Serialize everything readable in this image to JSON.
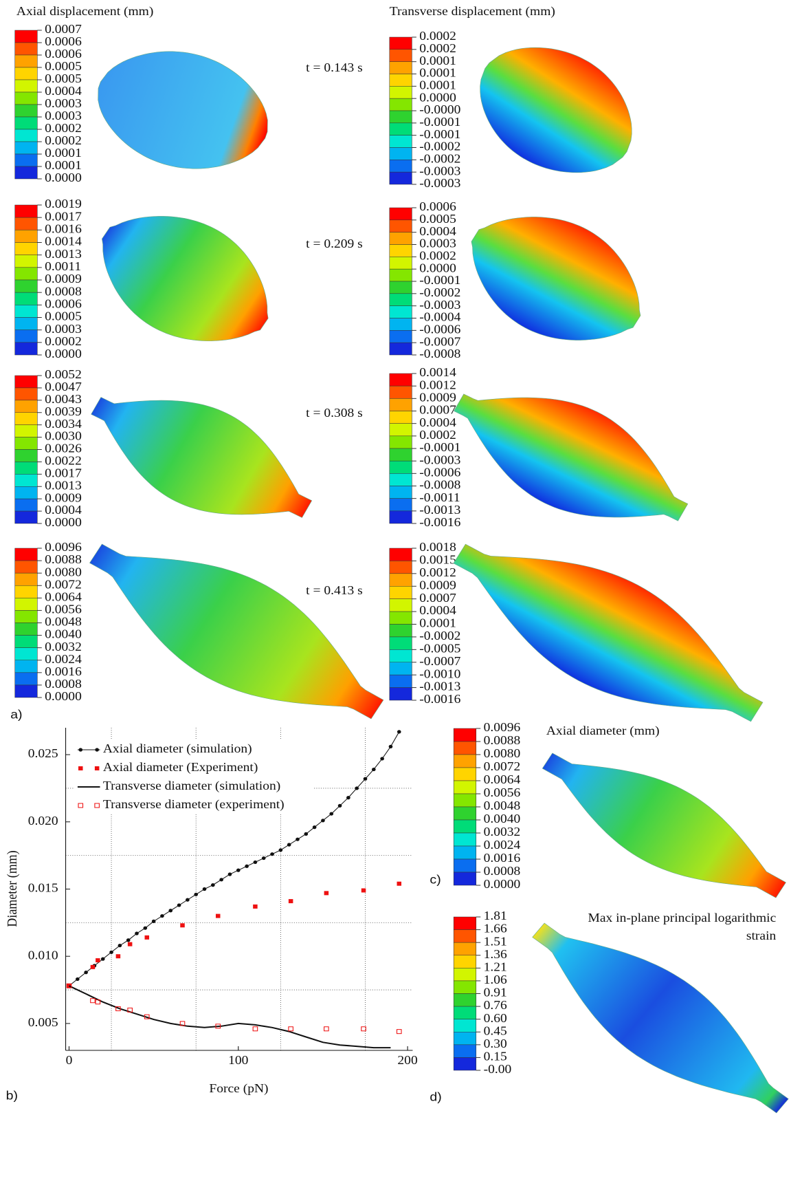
{
  "figure": {
    "header_left": "Axial displacement (mm)",
    "header_right": "Transverse displacement (mm)",
    "panel_labels": {
      "a": "a)",
      "b": "b)",
      "c": "c)",
      "d": "d)"
    },
    "colorbar_colors": [
      "#ff0000",
      "#ff5500",
      "#ffa200",
      "#ffd400",
      "#d2f500",
      "#84e600",
      "#2fd22f",
      "#00dc78",
      "#00e6d2",
      "#00b4f0",
      "#0a6ef0",
      "#1428dc"
    ],
    "rows": [
      {
        "time": "t = 0.143 s",
        "axial_labels": [
          "0.0007",
          "0.0006",
          "0.0006",
          "0.0005",
          "0.0005",
          "0.0004",
          "0.0003",
          "0.0003",
          "0.0002",
          "0.0002",
          "0.0001",
          "0.0001",
          "0.0000"
        ],
        "transverse_labels": [
          "0.0002",
          "0.0002",
          "0.0001",
          "0.0001",
          "0.0001",
          "0.0000",
          "-0.0000",
          "-0.0001",
          "-0.0001",
          "-0.0002",
          "-0.0002",
          "-0.0003",
          "-0.0003"
        ]
      },
      {
        "time": "t = 0.209 s",
        "axial_labels": [
          "0.0019",
          "0.0017",
          "0.0016",
          "0.0014",
          "0.0013",
          "0.0011",
          "0.0009",
          "0.0008",
          "0.0006",
          "0.0005",
          "0.0003",
          "0.0002",
          "0.0000"
        ],
        "transverse_labels": [
          "0.0006",
          "0.0005",
          "0.0004",
          "0.0003",
          "0.0002",
          "0.0000",
          "-0.0001",
          "-0.0002",
          "-0.0003",
          "-0.0004",
          "-0.0006",
          "-0.0007",
          "-0.0008"
        ]
      },
      {
        "time": "t = 0.308 s",
        "axial_labels": [
          "0.0052",
          "0.0047",
          "0.0043",
          "0.0039",
          "0.0034",
          "0.0030",
          "0.0026",
          "0.0022",
          "0.0017",
          "0.0013",
          "0.0009",
          "0.0004",
          "0.0000"
        ],
        "transverse_labels": [
          "0.0014",
          "0.0012",
          "0.0009",
          "0.0007",
          "0.0004",
          "0.0002",
          "-0.0001",
          "-0.0003",
          "-0.0006",
          "-0.0008",
          "-0.0011",
          "-0.0013",
          "-0.0016"
        ]
      },
      {
        "time": "t = 0.413 s",
        "axial_labels": [
          "0.0096",
          "0.0088",
          "0.0080",
          "0.0072",
          "0.0064",
          "0.0056",
          "0.0048",
          "0.0040",
          "0.0032",
          "0.0024",
          "0.0016",
          "0.0008",
          "0.0000"
        ],
        "transverse_labels": [
          "0.0018",
          "0.0015",
          "0.0012",
          "0.0009",
          "0.0007",
          "0.0004",
          "0.0001",
          "-0.0002",
          "-0.0005",
          "-0.0007",
          "-0.0010",
          "-0.0013",
          "-0.0016"
        ]
      }
    ],
    "panel_c": {
      "title": "Axial diameter (mm)",
      "labels": [
        "0.0096",
        "0.0088",
        "0.0080",
        "0.0072",
        "0.0064",
        "0.0056",
        "0.0048",
        "0.0040",
        "0.0032",
        "0.0024",
        "0.0016",
        "0.0008",
        "0.0000"
      ]
    },
    "panel_d": {
      "title_lines": [
        "Max in-plane principal logarithmic",
        "strain"
      ],
      "labels": [
        "1.81",
        "1.66",
        "1.51",
        "1.36",
        "1.21",
        "1.06",
        "0.91",
        "0.76",
        "0.60",
        "0.45",
        "0.30",
        "0.15",
        "-0.00"
      ]
    }
  },
  "chart_data": {
    "type": "line",
    "x_label": "Force (pN)",
    "y_label": "Diameter (mm)",
    "xlim": [
      -2,
      203
    ],
    "ylim": [
      0.003,
      0.027
    ],
    "xticks": [
      0,
      100,
      200
    ],
    "yticks": [
      0.005,
      {
        "value": 0.01,
        "label": "0.010"
      },
      0.015,
      {
        "value": 0.02,
        "label": "0.020"
      },
      0.025
    ],
    "xgrid": [
      25,
      75,
      125,
      175
    ],
    "ygrid": [
      0.0075,
      0.0125,
      0.0175,
      0.0225
    ],
    "series": [
      {
        "name": "Axial diameter  (simulation)",
        "color": "#111111",
        "line": true,
        "marker": "dot",
        "x": [
          0,
          5,
          10,
          15,
          20,
          25,
          30,
          35,
          40,
          45,
          50,
          55,
          60,
          65,
          70,
          75,
          80,
          85,
          90,
          95,
          100,
          105,
          110,
          115,
          120,
          125,
          130,
          135,
          140,
          145,
          150,
          155,
          160,
          165,
          170,
          175,
          180,
          185,
          190,
          195
        ],
        "values": [
          0.0078,
          0.0083,
          0.0088,
          0.0093,
          0.0098,
          0.0103,
          0.0108,
          0.0112,
          0.0117,
          0.0121,
          0.0126,
          0.013,
          0.0134,
          0.0138,
          0.0142,
          0.0146,
          0.015,
          0.0153,
          0.0157,
          0.0161,
          0.0164,
          0.0167,
          0.017,
          0.0173,
          0.0176,
          0.0179,
          0.0183,
          0.0187,
          0.0191,
          0.0196,
          0.0201,
          0.0206,
          0.0212,
          0.0218,
          0.0225,
          0.0232,
          0.0239,
          0.0247,
          0.0256,
          0.0267
        ]
      },
      {
        "name": "Axial diameter  (Experiment)",
        "color": "#ee1111",
        "line": false,
        "marker": "square",
        "x": [
          0,
          14,
          17,
          29,
          36,
          46,
          67,
          88,
          110,
          131,
          152,
          174,
          195
        ],
        "values": [
          0.0078,
          0.0092,
          0.0097,
          0.01,
          0.0109,
          0.0114,
          0.0123,
          0.013,
          0.0137,
          0.0141,
          0.0147,
          0.0149,
          0.0154
        ]
      },
      {
        "name": "Transverse diameter (simulation)",
        "color": "#111111",
        "line": true,
        "marker": "none",
        "x": [
          0,
          10,
          20,
          30,
          40,
          50,
          60,
          70,
          80,
          90,
          100,
          110,
          120,
          130,
          140,
          150,
          160,
          170,
          180,
          190
        ],
        "values": [
          0.0078,
          0.0072,
          0.0066,
          0.0061,
          0.0057,
          0.0053,
          0.005,
          0.0048,
          0.0047,
          0.0048,
          0.005,
          0.0049,
          0.0047,
          0.0044,
          0.004,
          0.0036,
          0.0034,
          0.0033,
          0.0032,
          0.0032
        ]
      },
      {
        "name": "Transverse diameter (experiment)",
        "color": "#ee1111",
        "line": false,
        "marker": "open-square",
        "x": [
          0,
          14,
          17,
          29,
          36,
          46,
          67,
          88,
          110,
          131,
          152,
          174,
          195
        ],
        "values": [
          0.0078,
          0.0067,
          0.0066,
          0.0061,
          0.006,
          0.0055,
          0.005,
          0.0048,
          0.0046,
          0.0046,
          0.0046,
          0.0046,
          0.0044
        ]
      }
    ]
  }
}
